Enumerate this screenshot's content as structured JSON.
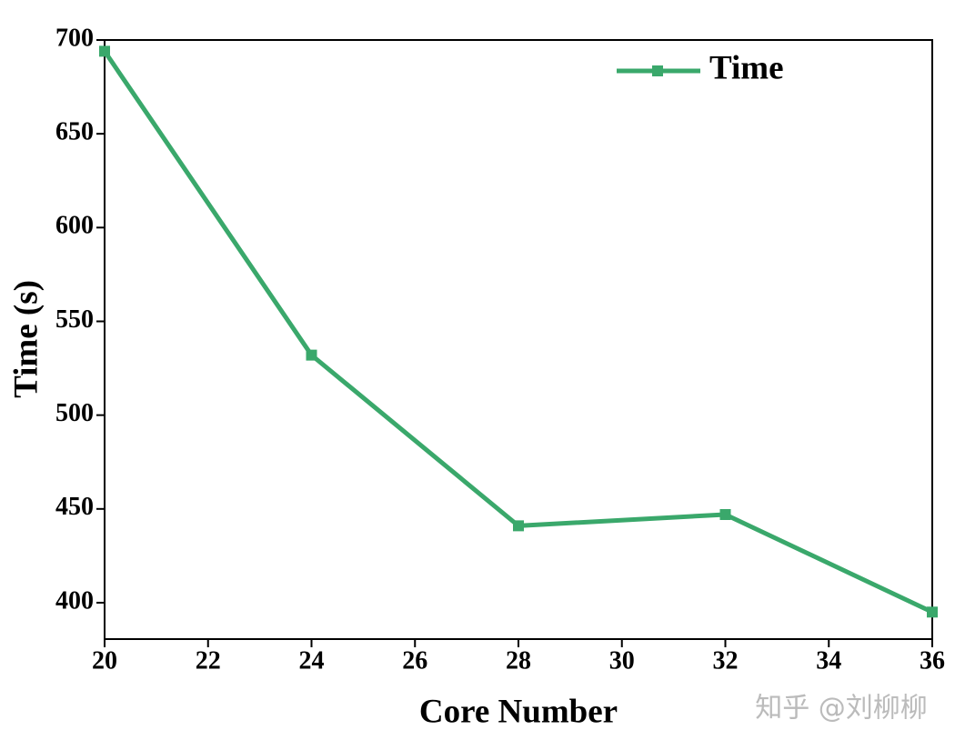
{
  "chart_data": {
    "type": "line",
    "x_label": "Core Number",
    "y_label": "Time (s)",
    "x": [
      20,
      24,
      28,
      32,
      36
    ],
    "series": [
      {
        "name": "Time",
        "color": "#3aa86b",
        "values": [
          694,
          532,
          441,
          447,
          395
        ]
      }
    ],
    "xlim": [
      20,
      36
    ],
    "xticks": [
      20,
      22,
      24,
      26,
      28,
      30,
      32,
      34,
      36
    ],
    "ylim": [
      380.6,
      700
    ],
    "yticks": [
      400,
      450,
      500,
      550,
      600,
      650,
      700
    ],
    "grid": false,
    "legend_position": "upper right",
    "watermark": "知乎 @刘柳柳"
  }
}
